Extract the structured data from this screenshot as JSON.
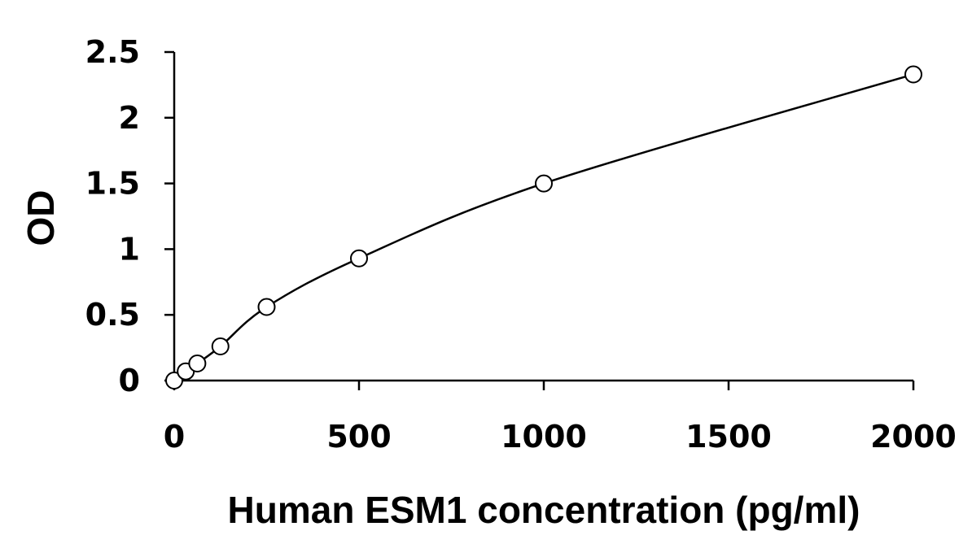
{
  "chart_data": {
    "type": "scatter",
    "title": "",
    "xlabel": "Human ESM1 concentration (pg/ml)",
    "ylabel": "OD",
    "xlim": [
      0,
      2000
    ],
    "ylim": [
      0,
      2.5
    ],
    "x_ticks": [
      "0",
      "500",
      "1000",
      "1500",
      "2000"
    ],
    "y_ticks": [
      "0",
      "0.5",
      "1",
      "1.5",
      "2",
      "2.5"
    ],
    "grid": false,
    "legend": "none",
    "series": [
      {
        "x": [
          0,
          31.25,
          62.5,
          125,
          250,
          500,
          1000,
          2000
        ],
        "y": [
          0.0,
          0.07,
          0.13,
          0.26,
          0.56,
          0.93,
          1.5,
          2.33
        ],
        "marker": "open-circle",
        "fit": "smooth-curve"
      }
    ],
    "colors": {
      "axis": "#000000",
      "curve": "#000000",
      "marker_fill": "#ffffff"
    }
  }
}
